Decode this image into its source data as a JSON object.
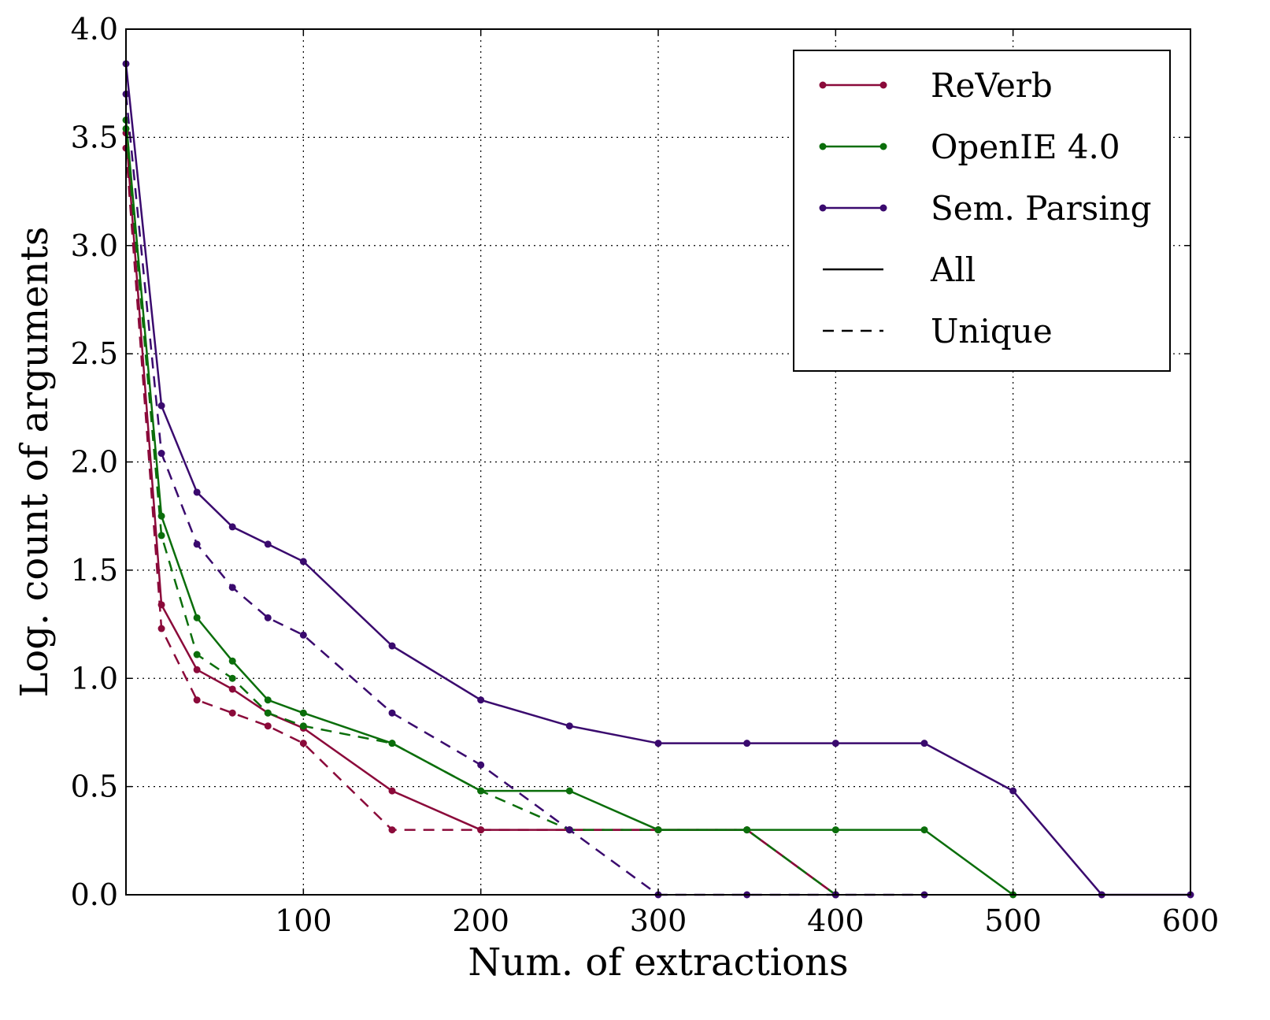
{
  "chart_data": {
    "type": "line",
    "title": "",
    "xlabel": "Num. of extractions",
    "ylabel": "Log. count of arguments",
    "xlim": [
      0,
      600
    ],
    "ylim": [
      0,
      4.0
    ],
    "x_tick_values": [
      100,
      200,
      300,
      400,
      500,
      600
    ],
    "x_tick_labels": [
      "100",
      "200",
      "300",
      "400",
      "500",
      "600"
    ],
    "y_tick_values": [
      0,
      0.5,
      1.0,
      1.5,
      2.0,
      2.5,
      3.0,
      3.5,
      4.0
    ],
    "y_tick_labels": [
      "0.0",
      "0.5",
      "1.0",
      "1.5",
      "2.0",
      "2.5",
      "3.0",
      "3.5",
      "4.0"
    ],
    "grid": true,
    "legend_position": "top-right",
    "legend": [
      {
        "label": "ReVerb",
        "kind": "series",
        "color": "#8b0a3a"
      },
      {
        "label": "OpenIE 4.0",
        "kind": "series",
        "color": "#0b6e0b"
      },
      {
        "label": "Sem. Parsing",
        "kind": "series",
        "color": "#3a0a6e"
      },
      {
        "label": "All",
        "kind": "solid"
      },
      {
        "label": "Unique",
        "kind": "dashed"
      }
    ],
    "series": [
      {
        "name": "ReVerb",
        "style": "All",
        "color": "#8b0a3a",
        "points": [
          [
            0,
            3.52
          ],
          [
            20,
            1.34
          ],
          [
            40,
            1.04
          ],
          [
            60,
            0.95
          ],
          [
            80,
            0.84
          ],
          [
            100,
            0.77
          ],
          [
            150,
            0.48
          ],
          [
            200,
            0.3
          ],
          [
            250,
            0.3
          ],
          [
            300,
            0.3
          ],
          [
            350,
            0.3
          ],
          [
            400,
            0.0
          ]
        ]
      },
      {
        "name": "ReVerb",
        "style": "Unique",
        "color": "#8b0a3a",
        "points": [
          [
            0,
            3.45
          ],
          [
            20,
            1.23
          ],
          [
            40,
            0.9
          ],
          [
            60,
            0.84
          ],
          [
            80,
            0.78
          ],
          [
            100,
            0.7
          ],
          [
            150,
            0.3
          ],
          [
            200,
            0.3
          ],
          [
            250,
            0.3
          ],
          [
            300,
            0.3
          ],
          [
            350,
            0.3
          ],
          [
            400,
            0.0
          ]
        ]
      },
      {
        "name": "OpenIE 4.0",
        "style": "All",
        "color": "#0b6e0b",
        "points": [
          [
            0,
            3.58
          ],
          [
            20,
            1.75
          ],
          [
            40,
            1.28
          ],
          [
            60,
            1.08
          ],
          [
            80,
            0.9
          ],
          [
            100,
            0.84
          ],
          [
            150,
            0.7
          ],
          [
            200,
            0.48
          ],
          [
            250,
            0.48
          ],
          [
            300,
            0.3
          ],
          [
            350,
            0.3
          ],
          [
            400,
            0.3
          ],
          [
            450,
            0.3
          ],
          [
            500,
            0.0
          ]
        ]
      },
      {
        "name": "OpenIE 4.0",
        "style": "Unique",
        "color": "#0b6e0b",
        "points": [
          [
            0,
            3.54
          ],
          [
            20,
            1.66
          ],
          [
            40,
            1.11
          ],
          [
            60,
            1.0
          ],
          [
            80,
            0.84
          ],
          [
            100,
            0.78
          ],
          [
            150,
            0.7
          ],
          [
            200,
            0.48
          ],
          [
            250,
            0.3
          ],
          [
            300,
            0.3
          ],
          [
            350,
            0.3
          ],
          [
            400,
            0.0
          ]
        ]
      },
      {
        "name": "Sem. Parsing",
        "style": "All",
        "color": "#3a0a6e",
        "points": [
          [
            0,
            3.84
          ],
          [
            20,
            2.26
          ],
          [
            40,
            1.86
          ],
          [
            60,
            1.7
          ],
          [
            80,
            1.62
          ],
          [
            100,
            1.54
          ],
          [
            150,
            1.15
          ],
          [
            200,
            0.9
          ],
          [
            250,
            0.78
          ],
          [
            300,
            0.7
          ],
          [
            350,
            0.7
          ],
          [
            400,
            0.7
          ],
          [
            450,
            0.7
          ],
          [
            500,
            0.48
          ],
          [
            550,
            0.0
          ],
          [
            600,
            0.0
          ]
        ]
      },
      {
        "name": "Sem. Parsing",
        "style": "Unique",
        "color": "#3a0a6e",
        "points": [
          [
            0,
            3.7
          ],
          [
            20,
            2.04
          ],
          [
            40,
            1.62
          ],
          [
            60,
            1.42
          ],
          [
            80,
            1.28
          ],
          [
            100,
            1.2
          ],
          [
            150,
            0.84
          ],
          [
            200,
            0.6
          ],
          [
            250,
            0.3
          ],
          [
            300,
            0.0
          ],
          [
            350,
            0.0
          ],
          [
            400,
            0.0
          ],
          [
            450,
            0.0
          ]
        ]
      }
    ]
  }
}
